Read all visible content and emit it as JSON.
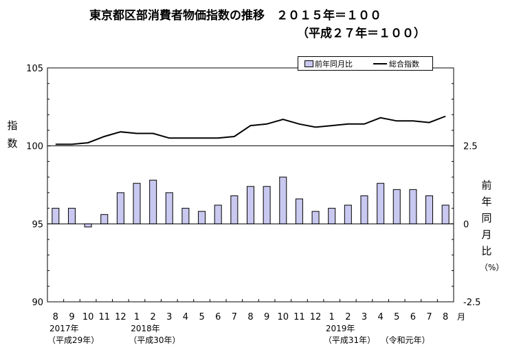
{
  "title": {
    "line1": "東京都区部消費者物価指数の推移　２０１５年＝１００",
    "line2": "（平成２７年＝１００）"
  },
  "left_axis_label": [
    "指",
    "数"
  ],
  "right_axis_label": [
    "前",
    "年",
    "同",
    "月",
    "比",
    "（%）"
  ],
  "legend": {
    "bar_label": "前年同月比",
    "line_label": "総合指数"
  },
  "month_unit": "月",
  "year_labels": [
    {
      "year": "2017年",
      "era": "（平成29年）"
    },
    {
      "year": "2018年",
      "era": "（平成30年）"
    },
    {
      "year": "2019年",
      "era": "（平成31年）",
      "era2": "（令和元年）"
    }
  ],
  "colors": {
    "bar_fill": "#c8c8f0",
    "bar_stroke": "#000000",
    "line": "#000000"
  },
  "chart_data": {
    "type": "bar+line",
    "categories": [
      "8",
      "9",
      "10",
      "11",
      "12",
      "1",
      "2",
      "3",
      "4",
      "5",
      "6",
      "7",
      "8",
      "9",
      "10",
      "11",
      "12",
      "1",
      "2",
      "3",
      "4",
      "5",
      "6",
      "7",
      "8"
    ],
    "series": [
      {
        "name": "前年同月比",
        "type": "bar",
        "axis": "right",
        "values": [
          0.5,
          0.5,
          -0.1,
          0.3,
          1.0,
          1.3,
          1.4,
          1.0,
          0.5,
          0.4,
          0.6,
          0.9,
          1.2,
          1.2,
          1.5,
          0.8,
          0.4,
          0.5,
          0.6,
          0.9,
          1.3,
          1.1,
          1.1,
          0.9,
          0.6
        ]
      },
      {
        "name": "総合指数",
        "type": "line",
        "axis": "left",
        "values": [
          100.1,
          100.1,
          100.2,
          100.6,
          100.9,
          100.8,
          100.8,
          100.5,
          100.5,
          100.5,
          100.5,
          100.6,
          101.3,
          101.4,
          101.7,
          101.4,
          101.2,
          101.3,
          101.4,
          101.4,
          101.8,
          101.6,
          101.6,
          101.5,
          101.9
        ]
      }
    ],
    "left_axis": {
      "ticks": [
        "105",
        "100",
        "95",
        "90"
      ],
      "min": 90,
      "max": 105
    },
    "right_axis": {
      "ticks": [
        "2.5",
        "0",
        "-2.5"
      ],
      "min": -2.5,
      "max": 5.0
    },
    "grid": false
  }
}
